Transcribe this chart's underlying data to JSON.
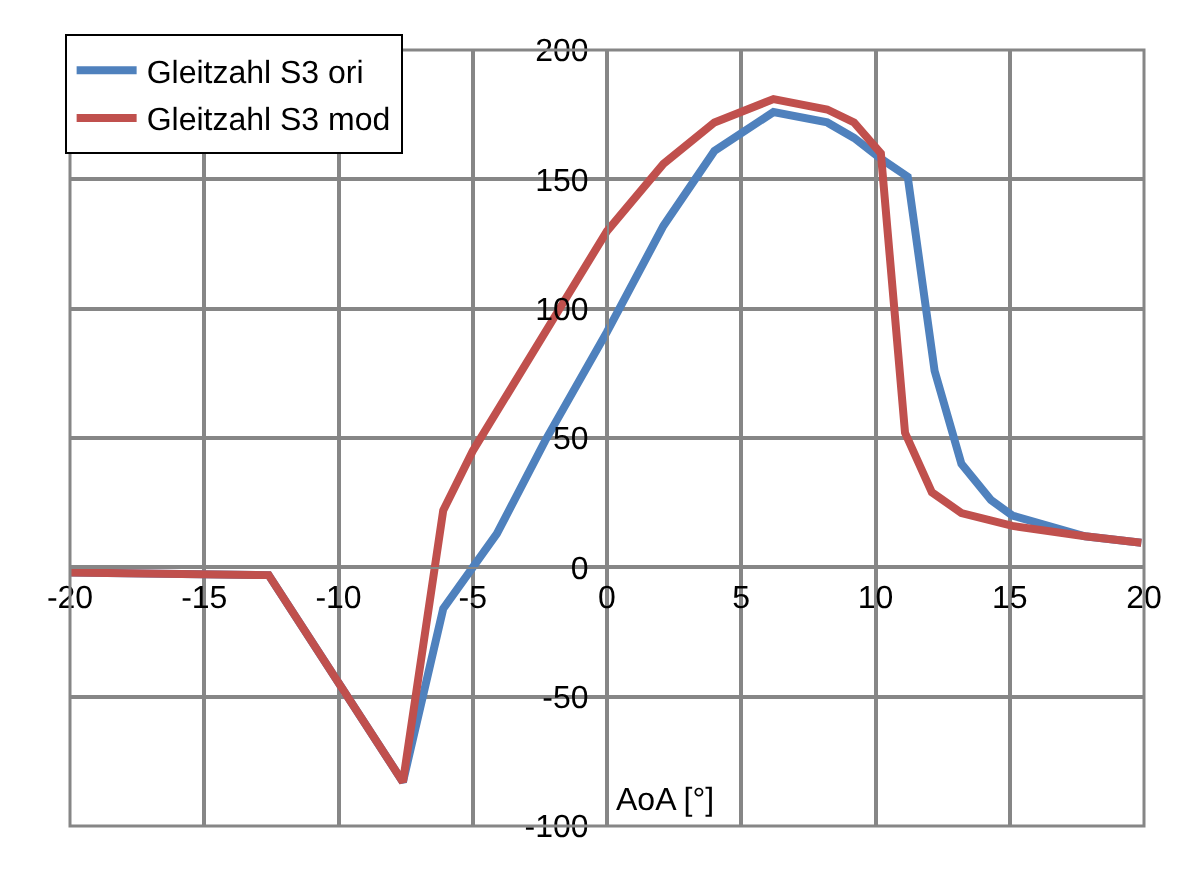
{
  "chart_data": {
    "type": "line",
    "xlabel": "AoA [°]",
    "xlim": [
      -20,
      20
    ],
    "xticks": [
      -20,
      -15,
      -10,
      -5,
      0,
      5,
      10,
      15,
      20
    ],
    "ylim": [
      -100,
      200
    ],
    "yticks": [
      -100,
      -50,
      0,
      50,
      100,
      150,
      200
    ],
    "grid": true,
    "legend": "top left",
    "marker": "none",
    "line_style": "solid",
    "series": [
      {
        "name": "Gleitzahl S3 ori",
        "color": "#4f81bd",
        "x": [
          -20,
          -12.6,
          -7.6,
          -6.1,
          -4.1,
          -2.3,
          0,
          2.1,
          4,
          6.2,
          8.2,
          9.2,
          10.2,
          11.2,
          12.2,
          13.2,
          14.3,
          15.1,
          17.8,
          19.9
        ],
        "values": [
          -2,
          -3,
          -83,
          -16,
          13,
          49,
          91,
          132,
          161,
          176,
          172,
          166,
          158,
          151,
          76,
          40,
          26,
          20,
          12,
          9.5
        ]
      },
      {
        "name": "Gleitzahl S3 mod",
        "color": "#c0504d",
        "x": [
          -20,
          -12.6,
          -7.6,
          -6.1,
          -5,
          -2,
          0,
          2.1,
          4,
          6.2,
          8.2,
          9.2,
          10.2,
          11.1,
          12.1,
          13.2,
          15.1,
          17.8,
          19.9
        ],
        "values": [
          -2,
          -3,
          -83,
          22,
          45,
          96,
          130,
          156,
          172,
          181,
          177,
          172,
          160,
          52,
          29,
          21,
          16,
          12,
          9.5
        ]
      }
    ]
  }
}
